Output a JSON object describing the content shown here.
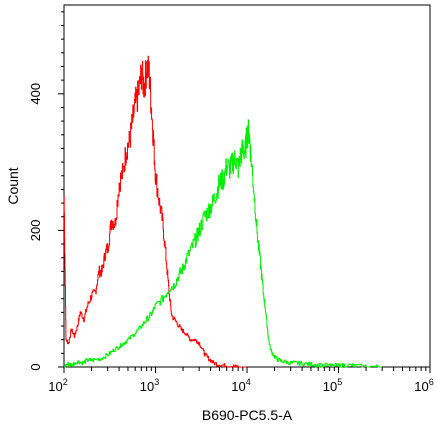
{
  "chart_data": {
    "type": "area",
    "title": "",
    "xlabel": "B690-PC5.5-A",
    "ylabel": "Count",
    "xscale": "log",
    "xlim": [
      100,
      1000000
    ],
    "ylim": [
      0,
      530
    ],
    "x_ticks": [
      {
        "base": "10",
        "exp": "2",
        "value": 100
      },
      {
        "base": "10",
        "exp": "3",
        "value": 1000
      },
      {
        "base": "10",
        "exp": "4",
        "value": 10000
      },
      {
        "base": "10",
        "exp": "5",
        "value": 100000
      },
      {
        "base": "10",
        "exp": "6",
        "value": 1000000
      }
    ],
    "y_ticks": [
      {
        "label": "0",
        "value": 0
      },
      {
        "label": "200",
        "value": 200
      },
      {
        "label": "400",
        "value": 400
      }
    ],
    "grid": false,
    "legend": "none",
    "series": [
      {
        "color": "#ff0000",
        "x": [
          100,
          105,
          112,
          120,
          130,
          140,
          150,
          165,
          180,
          200,
          220,
          240,
          260,
          280,
          300,
          330,
          360,
          400,
          440,
          480,
          520,
          560,
          600,
          650,
          700,
          750,
          800,
          850,
          900,
          950,
          1000,
          1100,
          1200,
          1300,
          1400,
          1500,
          1700,
          1900,
          2100,
          2400,
          2700,
          3000,
          3400,
          3800,
          4300,
          5000,
          6000,
          7000,
          8000,
          10000
        ],
        "y": [
          250,
          40,
          35,
          55,
          45,
          60,
          80,
          70,
          90,
          105,
          110,
          140,
          140,
          165,
          175,
          215,
          210,
          270,
          285,
          320,
          330,
          360,
          385,
          400,
          430,
          410,
          440,
          430,
          380,
          330,
          280,
          240,
          210,
          160,
          110,
          75,
          65,
          55,
          50,
          40,
          40,
          35,
          20,
          12,
          6,
          3,
          2,
          1,
          0,
          0
        ]
      },
      {
        "color": "#00ee00",
        "x": [
          100,
          110,
          120,
          140,
          160,
          180,
          200,
          250,
          300,
          350,
          400,
          450,
          500,
          600,
          700,
          800,
          900,
          1000,
          1200,
          1400,
          1600,
          1800,
          2000,
          2200,
          2500,
          2800,
          3000,
          3400,
          3800,
          4200,
          4600,
          5000,
          5500,
          6000,
          6500,
          7000,
          7500,
          8000,
          8500,
          9000,
          9500,
          10000,
          10500,
          11000,
          12000,
          13000,
          14000,
          15000,
          16000,
          17000,
          18000,
          20000,
          22000,
          25000,
          30000,
          35000,
          40000,
          50000,
          60000,
          80000,
          100000,
          120000,
          150000,
          200000,
          300000
        ],
        "y": [
          0,
          5,
          3,
          8,
          6,
          10,
          10,
          12,
          18,
          25,
          30,
          35,
          40,
          50,
          60,
          70,
          78,
          90,
          100,
          115,
          120,
          135,
          145,
          160,
          175,
          190,
          200,
          220,
          230,
          240,
          255,
          270,
          275,
          295,
          290,
          300,
          305,
          290,
          310,
          320,
          315,
          340,
          345,
          310,
          250,
          190,
          150,
          110,
          80,
          45,
          25,
          15,
          10,
          8,
          6,
          6,
          5,
          4,
          3,
          2,
          2,
          3,
          2,
          1,
          0
        ]
      }
    ]
  }
}
